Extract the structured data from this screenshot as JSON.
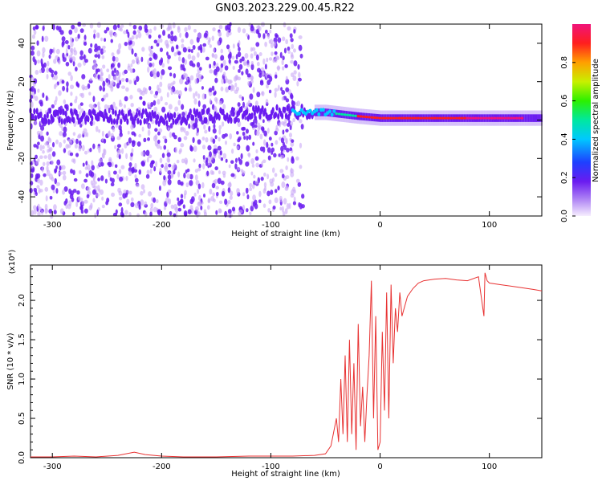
{
  "title": "GN03.2023.229.00.45.R22",
  "colors": {
    "snr_line": "#e83232",
    "spectrogram_dots": "#6a1bf0",
    "spectrogram_faint": "#c9a8f7"
  },
  "chart_data": [
    {
      "type": "heatmap",
      "xlabel": "Height of straight line (km)",
      "ylabel": "Frequency (Hz)",
      "xlim": [
        -320,
        148
      ],
      "ylim": [
        -50,
        50
      ],
      "xticks": [
        -300,
        -200,
        -100,
        0,
        100
      ],
      "yticks": [
        -40,
        -20,
        0,
        20,
        40
      ],
      "colorbar": {
        "label": "Normalized spectral amplitude",
        "range": [
          0.0,
          1.0
        ],
        "ticks": [
          "0.0",
          "0.2",
          "0.4",
          "0.6",
          "0.8"
        ],
        "colormap": "rainbow (violet to magenta)"
      },
      "ridge": [
        [
          -320,
          2
        ],
        [
          -230,
          2
        ],
        [
          -200,
          1
        ],
        [
          -80,
          4
        ],
        [
          -50,
          4
        ],
        [
          -20,
          2
        ],
        [
          0,
          1
        ],
        [
          100,
          1
        ],
        [
          148,
          1
        ]
      ],
      "legend": "none",
      "grid": false
    },
    {
      "type": "line",
      "xlabel": "Height of straight line (km)",
      "ylabel": "SNR (10 * v/v)",
      "ylabel_scale": "(x10⁴)",
      "xlim": [
        -320,
        148
      ],
      "ylim": [
        0,
        2.45
      ],
      "xticks": [
        -300,
        -200,
        -100,
        0,
        100
      ],
      "yticks": [
        "0.0",
        "0.5",
        "1.0",
        "1.5",
        "2.0"
      ],
      "series": [
        {
          "x": [
            -320,
            -300,
            -280,
            -260,
            -240,
            -225,
            -215,
            -200,
            -180,
            -150,
            -120,
            -100,
            -80,
            -60,
            -50,
            -45,
            -40,
            -38,
            -36,
            -34,
            -32,
            -30,
            -28,
            -26,
            -24,
            -22,
            -20,
            -18,
            -16,
            -14,
            -12,
            -10,
            -8,
            -6,
            -4,
            -2,
            0,
            2,
            4,
            6,
            8,
            10,
            12,
            14,
            16,
            18,
            20,
            25,
            30,
            35,
            40,
            50,
            60,
            70,
            80,
            90,
            95,
            96,
            98,
            100,
            110,
            120,
            130,
            140,
            148
          ],
          "values": [
            0.01,
            0.01,
            0.02,
            0.01,
            0.03,
            0.07,
            0.04,
            0.02,
            0.01,
            0.01,
            0.02,
            0.02,
            0.02,
            0.03,
            0.05,
            0.15,
            0.5,
            0.2,
            1.0,
            0.3,
            1.3,
            0.2,
            1.5,
            0.3,
            1.2,
            0.1,
            1.7,
            0.4,
            0.9,
            0.2,
            0.8,
            1.3,
            2.25,
            0.5,
            1.8,
            0.1,
            0.2,
            1.6,
            0.6,
            2.1,
            0.5,
            2.2,
            1.2,
            1.9,
            1.6,
            2.1,
            1.8,
            2.05,
            2.15,
            2.22,
            2.25,
            2.27,
            2.28,
            2.26,
            2.25,
            2.3,
            1.8,
            2.35,
            2.25,
            2.22,
            2.2,
            2.18,
            2.16,
            2.14,
            2.12
          ]
        }
      ],
      "legend": "none",
      "grid": false
    }
  ]
}
